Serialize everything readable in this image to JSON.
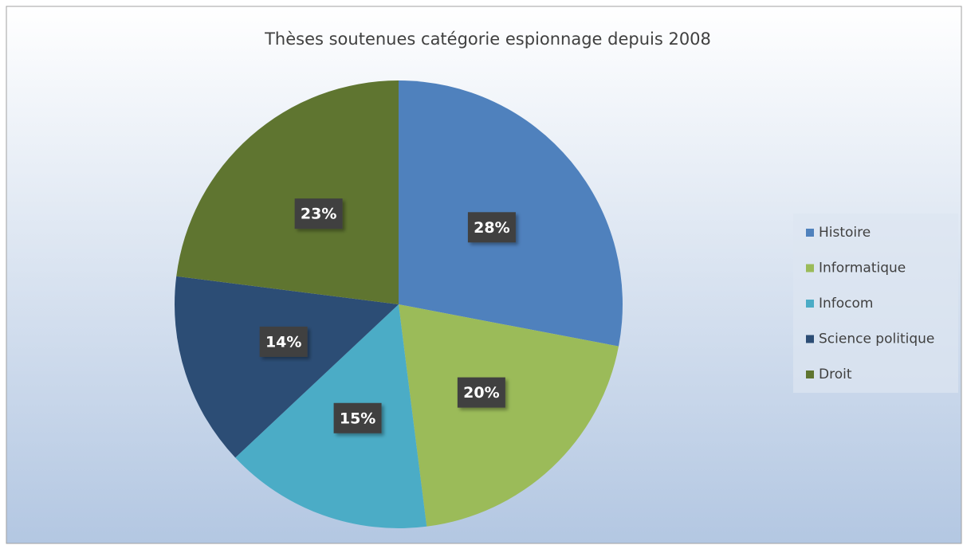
{
  "chart_data": {
    "type": "pie",
    "title": "Thèses soutenues catégorie espionnage depuis 2008",
    "categories": [
      "Histoire",
      "Informatique",
      "Infocom",
      "Science politique",
      "Droit"
    ],
    "values": [
      28,
      20,
      15,
      14,
      23
    ],
    "value_labels": [
      "28%",
      "20%",
      "15%",
      "14%",
      "23%"
    ],
    "colors": [
      "#4f81bd",
      "#9bbb59",
      "#4bacc6",
      "#2c4d75",
      "#5f7530"
    ],
    "legend": "right"
  }
}
